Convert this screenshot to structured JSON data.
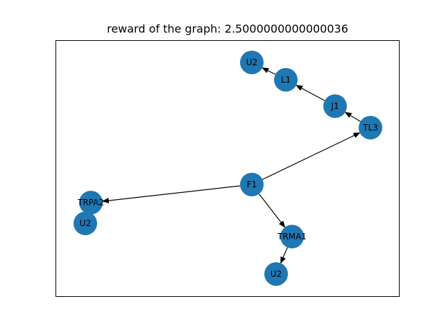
{
  "title": "reward of the graph: 2.5000000000000036",
  "node_color": "#1f77b4",
  "edge_color": "#000000",
  "nodes": [
    {
      "id": "u2_top",
      "label": "U2"
    },
    {
      "id": "l1",
      "label": "L1"
    },
    {
      "id": "j1",
      "label": "J1"
    },
    {
      "id": "tl3",
      "label": "TL3"
    },
    {
      "id": "f1",
      "label": "F1"
    },
    {
      "id": "trpa2",
      "label": "TRPA2"
    },
    {
      "id": "u2_left",
      "label": "U2"
    },
    {
      "id": "trma1",
      "label": "TRMA1"
    },
    {
      "id": "u2_bottom",
      "label": "U2"
    }
  ],
  "edges": [
    {
      "from": "l1",
      "to": "u2_top"
    },
    {
      "from": "j1",
      "to": "l1"
    },
    {
      "from": "tl3",
      "to": "j1"
    },
    {
      "from": "f1",
      "to": "tl3"
    },
    {
      "from": "f1",
      "to": "trpa2"
    },
    {
      "from": "f1",
      "to": "trma1"
    },
    {
      "from": "trma1",
      "to": "u2_bottom"
    }
  ]
}
